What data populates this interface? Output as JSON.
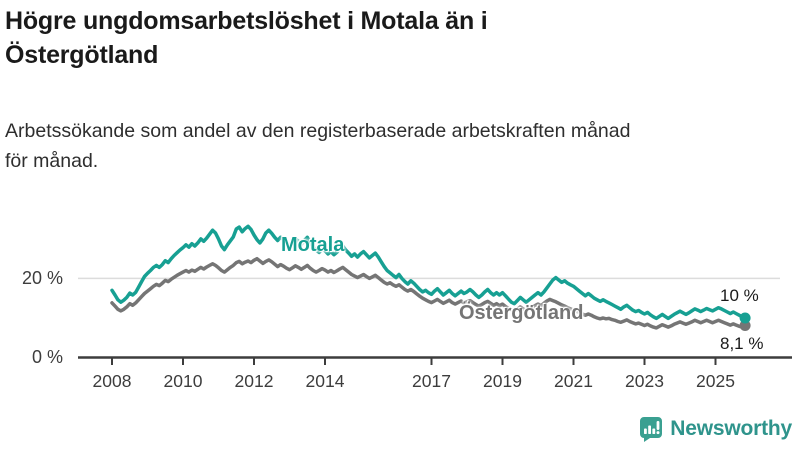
{
  "header": {
    "title": "Högre ungdomsarbetslöshet i Motala än i\nÖstergötland",
    "subtitle": "Arbetssökande som andel av den registerbaserade arbetskraften månad\nför månad."
  },
  "footer": {
    "logo_text": "Newsworthy",
    "logo_icon": "bar-chart-speech-bubble-icon"
  },
  "colors": {
    "motala": "#17a093",
    "ostergotland": "#757575",
    "axis": "#3d3d3d",
    "tick_label": "#3d3d3d",
    "gridline": "#dcdcdc",
    "title_text": "#1a1a1a",
    "logo_icon_teal": "#3aa091",
    "logo_text_teal": "#2f948c"
  },
  "chart_data": {
    "type": "line",
    "unit": "%",
    "frequency": "monthly",
    "x_start": "2008-01",
    "x_end": "2025-11",
    "ylim": [
      0,
      38
    ],
    "grid": "horizontal-gridline-at-20-only",
    "legend_position": "inline-labels-on-lines",
    "y_ticks": [
      {
        "value": 0,
        "label": "0 %",
        "gridline": false
      },
      {
        "value": 20,
        "label": "20 %",
        "gridline": true
      }
    ],
    "x_ticks": [
      {
        "year": 2008,
        "label": "2008"
      },
      {
        "year": 2010,
        "label": "2010"
      },
      {
        "year": 2012,
        "label": "2012"
      },
      {
        "year": 2014,
        "label": "2014"
      },
      {
        "year": 2017,
        "label": "2017"
      },
      {
        "year": 2019,
        "label": "2019"
      },
      {
        "year": 2021,
        "label": "2021"
      },
      {
        "year": 2023,
        "label": "2023"
      },
      {
        "year": 2025,
        "label": "2025"
      }
    ],
    "series": [
      {
        "name": "Motala",
        "color": "#17a093",
        "end_label": "10 %",
        "end_value": 10.0,
        "values": [
          17.0,
          15.8,
          14.6,
          14.0,
          14.5,
          15.2,
          16.3,
          15.8,
          16.5,
          17.8,
          19.2,
          20.5,
          21.3,
          22.0,
          22.8,
          23.3,
          22.8,
          23.5,
          24.5,
          24.0,
          25.0,
          25.8,
          26.5,
          27.2,
          27.8,
          28.5,
          27.9,
          28.8,
          28.2,
          29.0,
          30.0,
          29.4,
          30.2,
          31.2,
          32.2,
          31.5,
          30.0,
          28.2,
          27.3,
          28.5,
          29.5,
          30.5,
          32.5,
          33.0,
          31.8,
          32.6,
          33.2,
          32.4,
          31.0,
          29.8,
          29.0,
          30.0,
          31.5,
          32.2,
          31.4,
          30.4,
          29.6,
          30.4,
          29.8,
          29.0,
          28.4,
          29.2,
          30.0,
          29.4,
          28.6,
          29.6,
          30.4,
          29.0,
          28.0,
          27.2,
          26.6,
          27.4,
          27.0,
          26.2,
          26.8,
          26.0,
          26.6,
          27.6,
          28.2,
          27.2,
          26.4,
          25.6,
          26.2,
          25.4,
          26.2,
          26.8,
          26.0,
          25.2,
          25.8,
          26.4,
          25.4,
          24.2,
          23.0,
          22.0,
          21.4,
          20.8,
          20.2,
          21.0,
          20.0,
          19.2,
          18.6,
          19.4,
          18.8,
          18.0,
          17.2,
          16.6,
          17.0,
          16.4,
          16.0,
          16.8,
          17.4,
          16.6,
          15.8,
          16.4,
          17.0,
          16.2,
          15.6,
          16.2,
          16.8,
          16.2,
          16.6,
          17.2,
          16.6,
          15.8,
          15.2,
          15.8,
          16.6,
          17.2,
          16.4,
          15.8,
          16.4,
          15.8,
          16.4,
          15.6,
          14.8,
          14.0,
          13.6,
          14.4,
          15.2,
          14.6,
          14.0,
          14.6,
          15.2,
          15.8,
          16.4,
          15.8,
          16.6,
          17.6,
          18.6,
          19.6,
          20.2,
          19.6,
          19.0,
          19.4,
          18.8,
          18.4,
          18.0,
          17.4,
          16.8,
          16.2,
          15.6,
          16.2,
          15.6,
          15.0,
          14.6,
          14.2,
          14.6,
          14.2,
          13.8,
          13.4,
          13.0,
          12.6,
          12.2,
          12.8,
          13.2,
          12.6,
          12.0,
          11.6,
          11.9,
          11.4,
          11.0,
          11.4,
          10.8,
          10.3,
          9.9,
          10.4,
          10.9,
          10.4,
          9.9,
          10.4,
          10.9,
          11.3,
          11.7,
          11.3,
          10.9,
          11.3,
          11.8,
          12.3,
          12.0,
          11.6,
          12.0,
          12.4,
          12.1,
          11.8,
          12.2,
          12.6,
          12.3,
          11.9,
          11.5,
          11.1,
          11.5,
          11.1,
          10.7,
          10.3,
          10.0
        ]
      },
      {
        "name": "Östergötland",
        "color": "#757575",
        "end_label": "8,1 %",
        "end_value": 8.1,
        "values": [
          13.8,
          13.0,
          12.2,
          11.8,
          12.2,
          12.8,
          13.6,
          13.2,
          13.8,
          14.6,
          15.4,
          16.2,
          16.8,
          17.4,
          18.0,
          18.5,
          18.2,
          18.8,
          19.5,
          19.2,
          19.8,
          20.3,
          20.8,
          21.2,
          21.6,
          22.0,
          21.6,
          22.1,
          21.8,
          22.3,
          22.8,
          22.4,
          22.9,
          23.3,
          23.7,
          23.3,
          22.7,
          22.0,
          21.6,
          22.2,
          22.8,
          23.3,
          24.0,
          24.3,
          23.7,
          24.1,
          24.4,
          24.0,
          24.6,
          25.0,
          24.4,
          23.8,
          24.3,
          24.7,
          24.2,
          23.6,
          23.0,
          23.5,
          23.1,
          22.6,
          22.2,
          22.7,
          23.2,
          22.8,
          22.3,
          22.8,
          23.3,
          22.6,
          22.0,
          21.6,
          22.0,
          22.5,
          22.1,
          21.6,
          22.0,
          21.5,
          21.9,
          22.4,
          22.8,
          22.2,
          21.6,
          21.0,
          20.6,
          20.2,
          20.6,
          21.0,
          20.5,
          20.0,
          20.4,
          20.8,
          20.2,
          19.6,
          19.0,
          18.6,
          18.9,
          18.4,
          18.0,
          18.4,
          17.8,
          17.2,
          16.8,
          17.2,
          16.7,
          16.1,
          15.5,
          15.0,
          14.6,
          14.2,
          13.9,
          14.3,
          14.7,
          14.2,
          13.7,
          14.1,
          14.5,
          13.9,
          13.5,
          13.9,
          14.3,
          13.8,
          14.1,
          14.4,
          13.9,
          13.4,
          13.0,
          13.4,
          13.9,
          14.2,
          13.7,
          13.2,
          13.6,
          13.1,
          13.5,
          12.9,
          12.4,
          12.0,
          11.7,
          12.2,
          12.8,
          12.3,
          11.9,
          12.3,
          12.7,
          13.1,
          13.5,
          13.1,
          13.7,
          14.3,
          14.7,
          14.4,
          14.1,
          13.7,
          13.3,
          13.0,
          12.6,
          12.3,
          12.0,
          11.7,
          11.4,
          11.0,
          10.7,
          11.0,
          10.7,
          10.3,
          10.0,
          9.8,
          10.0,
          9.8,
          9.9,
          9.6,
          9.4,
          9.1,
          8.9,
          9.2,
          9.5,
          9.1,
          8.8,
          8.5,
          8.7,
          8.4,
          8.1,
          8.4,
          8.0,
          7.7,
          7.5,
          7.9,
          8.3,
          8.0,
          7.7,
          8.0,
          8.4,
          8.7,
          9.0,
          8.7,
          8.4,
          8.7,
          9.0,
          9.4,
          9.1,
          8.8,
          9.1,
          9.4,
          9.1,
          8.8,
          9.1,
          9.4,
          9.1,
          8.8,
          8.5,
          8.2,
          8.5,
          8.2,
          7.9,
          7.7,
          8.1
        ]
      }
    ]
  }
}
